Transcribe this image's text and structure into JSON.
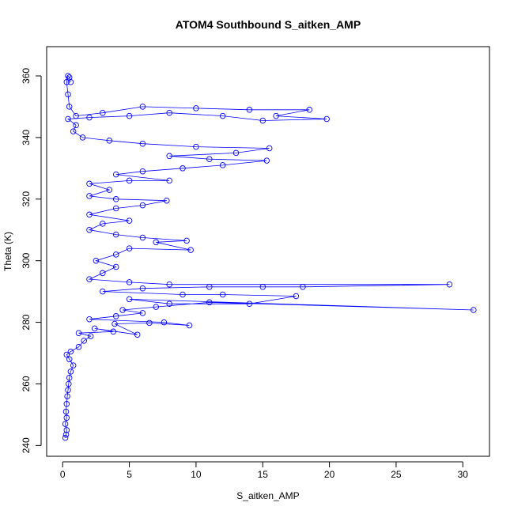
{
  "chart_data": {
    "type": "scatter",
    "title": "ATOM4 Southbound S_aitken_AMP",
    "xlabel": "S_aitken_AMP",
    "ylabel": "Theta (K)",
    "xlim": [
      -1.2,
      32.0
    ],
    "ylim": [
      236.5,
      369.5
    ],
    "xticks": [
      0,
      5,
      10,
      15,
      20,
      25,
      30
    ],
    "yticks": [
      240,
      260,
      280,
      300,
      320,
      340,
      360
    ],
    "grid": false,
    "legend": "none",
    "style": "points connected by lines",
    "color": "#0000ff",
    "series": [
      {
        "points": [
          [
            0.2,
            242.5
          ],
          [
            0.25,
            243.5
          ],
          [
            0.3,
            245
          ],
          [
            0.2,
            247
          ],
          [
            0.3,
            249
          ],
          [
            0.25,
            251
          ],
          [
            0.3,
            253.5
          ],
          [
            0.35,
            256
          ],
          [
            0.4,
            258
          ],
          [
            0.45,
            260
          ],
          [
            0.5,
            262
          ],
          [
            0.6,
            264
          ],
          [
            0.8,
            266
          ],
          [
            0.5,
            268
          ],
          [
            0.3,
            269.5
          ],
          [
            0.6,
            270.5
          ],
          [
            1.2,
            272
          ],
          [
            1.6,
            274
          ],
          [
            2.1,
            275.5
          ],
          [
            1.2,
            276.5
          ],
          [
            3.8,
            277
          ],
          [
            2.4,
            278
          ],
          [
            5.6,
            276
          ],
          [
            3.9,
            279.5
          ],
          [
            6.5,
            279.8
          ],
          [
            9.5,
            279
          ],
          [
            7.6,
            280
          ],
          [
            2.0,
            281
          ],
          [
            4.0,
            282
          ],
          [
            6.0,
            283
          ],
          [
            4.5,
            284
          ],
          [
            7.0,
            285
          ],
          [
            11.0,
            286.5
          ],
          [
            30.8,
            284
          ],
          [
            5.0,
            287.5
          ],
          [
            8.0,
            286
          ],
          [
            14.0,
            286
          ],
          [
            17.5,
            288.5
          ],
          [
            12.0,
            289
          ],
          [
            9.0,
            289
          ],
          [
            3.0,
            290
          ],
          [
            6.0,
            291
          ],
          [
            11.0,
            291.5
          ],
          [
            15.0,
            291.5
          ],
          [
            18.0,
            291.5
          ],
          [
            29.0,
            292.3
          ],
          [
            8.0,
            292.3
          ],
          [
            5.0,
            293
          ],
          [
            2.0,
            294
          ],
          [
            3.0,
            296
          ],
          [
            4.0,
            298
          ],
          [
            2.5,
            300
          ],
          [
            4.0,
            302
          ],
          [
            5.0,
            304
          ],
          [
            9.6,
            303.5
          ],
          [
            7.0,
            306
          ],
          [
            9.3,
            306.5
          ],
          [
            6.0,
            307.5
          ],
          [
            4.0,
            308.5
          ],
          [
            2.0,
            310
          ],
          [
            3.0,
            312
          ],
          [
            5.0,
            313
          ],
          [
            2.0,
            315
          ],
          [
            4.0,
            317
          ],
          [
            6.0,
            318
          ],
          [
            7.8,
            319.5
          ],
          [
            4.0,
            320
          ],
          [
            2.0,
            321
          ],
          [
            3.5,
            323
          ],
          [
            2.0,
            325
          ],
          [
            5.0,
            326
          ],
          [
            8.0,
            326
          ],
          [
            4.0,
            328
          ],
          [
            6.0,
            329
          ],
          [
            9.0,
            330
          ],
          [
            12.0,
            331
          ],
          [
            15.3,
            332.5
          ],
          [
            11.0,
            333
          ],
          [
            8.0,
            334
          ],
          [
            13.0,
            335
          ],
          [
            15.5,
            336.5
          ],
          [
            10.0,
            337
          ],
          [
            6.0,
            338
          ],
          [
            3.5,
            339
          ],
          [
            1.5,
            340
          ],
          [
            0.8,
            342
          ],
          [
            1.0,
            344
          ],
          [
            0.4,
            346
          ],
          [
            2.0,
            346.5
          ],
          [
            5.0,
            347
          ],
          [
            8.0,
            348
          ],
          [
            12.0,
            347
          ],
          [
            15.0,
            345.5
          ],
          [
            19.8,
            346
          ],
          [
            16.0,
            347
          ],
          [
            18.5,
            349
          ],
          [
            14.0,
            349
          ],
          [
            10.0,
            349.5
          ],
          [
            6.0,
            350
          ],
          [
            3.0,
            348
          ],
          [
            1.0,
            347
          ],
          [
            0.5,
            350
          ],
          [
            0.4,
            354
          ],
          [
            0.3,
            358
          ],
          [
            0.4,
            360
          ],
          [
            0.5,
            359.5
          ],
          [
            0.6,
            358
          ]
        ]
      }
    ]
  }
}
